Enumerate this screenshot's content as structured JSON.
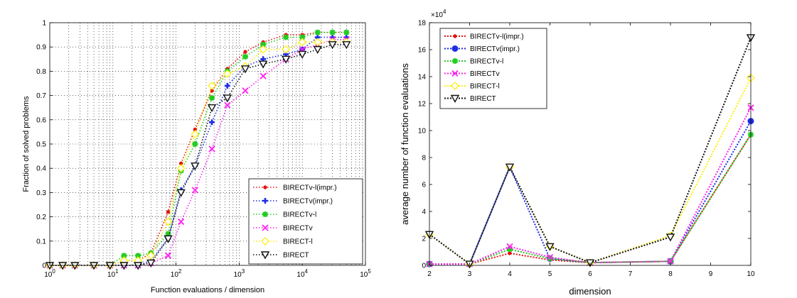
{
  "chart_data": [
    {
      "type": "line",
      "xscale": "log",
      "xlabel": "Function evaluations / dimension",
      "ylabel": "Fraction of solved problems",
      "xlim": [
        1,
        100000
      ],
      "ylim": [
        0,
        1
      ],
      "grid": true,
      "legend_position": "lower-right",
      "xtick_labels": [
        "10^0",
        "10^1",
        "10^2",
        "10^3",
        "10^4",
        "10^5"
      ],
      "ytick_labels": [
        "0",
        "0.1",
        "0.2",
        "0.3",
        "0.4",
        "0.5",
        "0.6",
        "0.7",
        "0.8",
        "0.9",
        "1"
      ],
      "series": [
        {
          "name": "BIRECTv-l(impr.)",
          "color": "#e81010",
          "marker": "dot",
          "x": [
            1,
            1.6,
            2.5,
            5,
            9,
            15,
            25,
            40,
            75,
            120,
            200,
            370,
            650,
            1250,
            2400,
            5500,
            10000,
            17500,
            30000,
            50000
          ],
          "y": [
            0,
            0,
            0,
            0,
            0,
            0.02,
            0.02,
            0.05,
            0.22,
            0.42,
            0.56,
            0.72,
            0.81,
            0.88,
            0.92,
            0.95,
            0.95,
            0.96,
            0.96,
            0.96
          ]
        },
        {
          "name": "BIRECTv(impr.)",
          "color": "#1e2ee6",
          "marker": "plus",
          "x": [
            1,
            1.6,
            2.5,
            5,
            9,
            15,
            25,
            40,
            75,
            120,
            200,
            370,
            650,
            1250,
            2400,
            5500,
            10000,
            17500,
            30000,
            50000
          ],
          "y": [
            0,
            0,
            0,
            0,
            0,
            0,
            0,
            0.02,
            0.11,
            0.31,
            0.41,
            0.59,
            0.74,
            0.82,
            0.85,
            0.87,
            0.89,
            0.94,
            0.94,
            0.94
          ]
        },
        {
          "name": "BIRECTv-l",
          "color": "#22cc22",
          "marker": "star",
          "x": [
            1,
            1.6,
            2.5,
            5,
            9,
            15,
            25,
            40,
            75,
            120,
            200,
            370,
            650,
            1250,
            2400,
            5500,
            10000,
            17500,
            30000,
            50000
          ],
          "y": [
            0,
            0,
            0,
            0,
            0,
            0.04,
            0.04,
            0.05,
            0.13,
            0.39,
            0.5,
            0.69,
            0.8,
            0.86,
            0.91,
            0.94,
            0.94,
            0.96,
            0.96,
            0.96
          ]
        },
        {
          "name": "BIRECTv",
          "color": "#ff22ee",
          "marker": "cross",
          "x": [
            1,
            1.6,
            2.5,
            5,
            9,
            15,
            25,
            40,
            75,
            120,
            200,
            370,
            650,
            1250,
            2400,
            5500,
            10000,
            17500,
            30000,
            50000
          ],
          "y": [
            0,
            0,
            0,
            0,
            0,
            0,
            0,
            0.01,
            0.04,
            0.18,
            0.31,
            0.48,
            0.66,
            0.72,
            0.78,
            0.85,
            0.89,
            0.91,
            0.93,
            0.93
          ]
        },
        {
          "name": "BIRECT-l",
          "color": "#ffee00",
          "marker": "diamond",
          "x": [
            1,
            1.6,
            2.5,
            5,
            9,
            15,
            25,
            40,
            75,
            120,
            200,
            370,
            650,
            1250,
            2400,
            5500,
            10000,
            17500,
            30000,
            50000
          ],
          "y": [
            0,
            0,
            0,
            0,
            0,
            0.02,
            0.02,
            0.04,
            0.18,
            0.4,
            0.54,
            0.74,
            0.79,
            0.82,
            0.89,
            0.89,
            0.92,
            0.92,
            0.92,
            0.92
          ]
        },
        {
          "name": "BIRECT",
          "color": "#111111",
          "marker": "triangle-down",
          "x": [
            1,
            1.6,
            2.5,
            5,
            9,
            15,
            25,
            40,
            75,
            120,
            200,
            370,
            650,
            1250,
            2400,
            5500,
            10000,
            17500,
            30000,
            50000
          ],
          "y": [
            0,
            0,
            0,
            0,
            0,
            0,
            0,
            0.01,
            0.11,
            0.3,
            0.41,
            0.65,
            0.69,
            0.81,
            0.83,
            0.85,
            0.87,
            0.89,
            0.91,
            0.91
          ]
        }
      ]
    },
    {
      "type": "line",
      "xlabel": "dimension",
      "ylabel": "average number of function evaluations",
      "xlim": [
        2,
        10
      ],
      "ylim": [
        0,
        18
      ],
      "y_multiplier_label": "×10",
      "y_multiplier_exp": "4",
      "grid": false,
      "legend_position": "top-left",
      "xtick_labels": [
        "2",
        "3",
        "4",
        "5",
        "6",
        "7",
        "8",
        "9",
        "10"
      ],
      "ytick_labels": [
        "0",
        "2",
        "4",
        "6",
        "8",
        "10",
        "12",
        "14",
        "16",
        "18"
      ],
      "series": [
        {
          "name": "BIRECTv-l(impr.)",
          "color": "#e81010",
          "marker": "dot",
          "x": [
            2,
            3,
            4,
            5,
            6,
            8,
            10
          ],
          "y": [
            0.1,
            0.1,
            0.9,
            0.4,
            0.2,
            0.3,
            9.7
          ]
        },
        {
          "name": "BIRECTv(impr.)",
          "color": "#1e2ee6",
          "marker": "circle",
          "x": [
            2,
            3,
            4,
            5,
            6,
            8,
            10
          ],
          "y": [
            0.1,
            0.1,
            7.3,
            0.5,
            0.2,
            0.3,
            10.7
          ]
        },
        {
          "name": "BIRECTv-l",
          "color": "#22cc22",
          "marker": "star",
          "x": [
            2,
            3,
            4,
            5,
            6,
            8,
            10
          ],
          "y": [
            0.1,
            0.1,
            1.2,
            0.5,
            0.2,
            0.3,
            9.7
          ]
        },
        {
          "name": "BIRECTv",
          "color": "#ff22ee",
          "marker": "cross",
          "x": [
            2,
            3,
            4,
            5,
            6,
            8,
            10
          ],
          "y": [
            0.1,
            0.1,
            1.4,
            0.6,
            0.2,
            0.3,
            11.7
          ]
        },
        {
          "name": "BIRECT-l",
          "color": "#ffee00",
          "marker": "diamond",
          "x": [
            2,
            3,
            4,
            5,
            6,
            8,
            10
          ],
          "y": [
            2.3,
            0.1,
            7.3,
            1.4,
            0.2,
            2.2,
            13.9
          ]
        },
        {
          "name": "BIRECT",
          "color": "#111111",
          "marker": "triangle-down",
          "x": [
            2,
            3,
            4,
            5,
            6,
            8,
            10
          ],
          "y": [
            2.3,
            0.1,
            7.3,
            1.4,
            0.2,
            2.1,
            16.9
          ]
        }
      ]
    }
  ]
}
